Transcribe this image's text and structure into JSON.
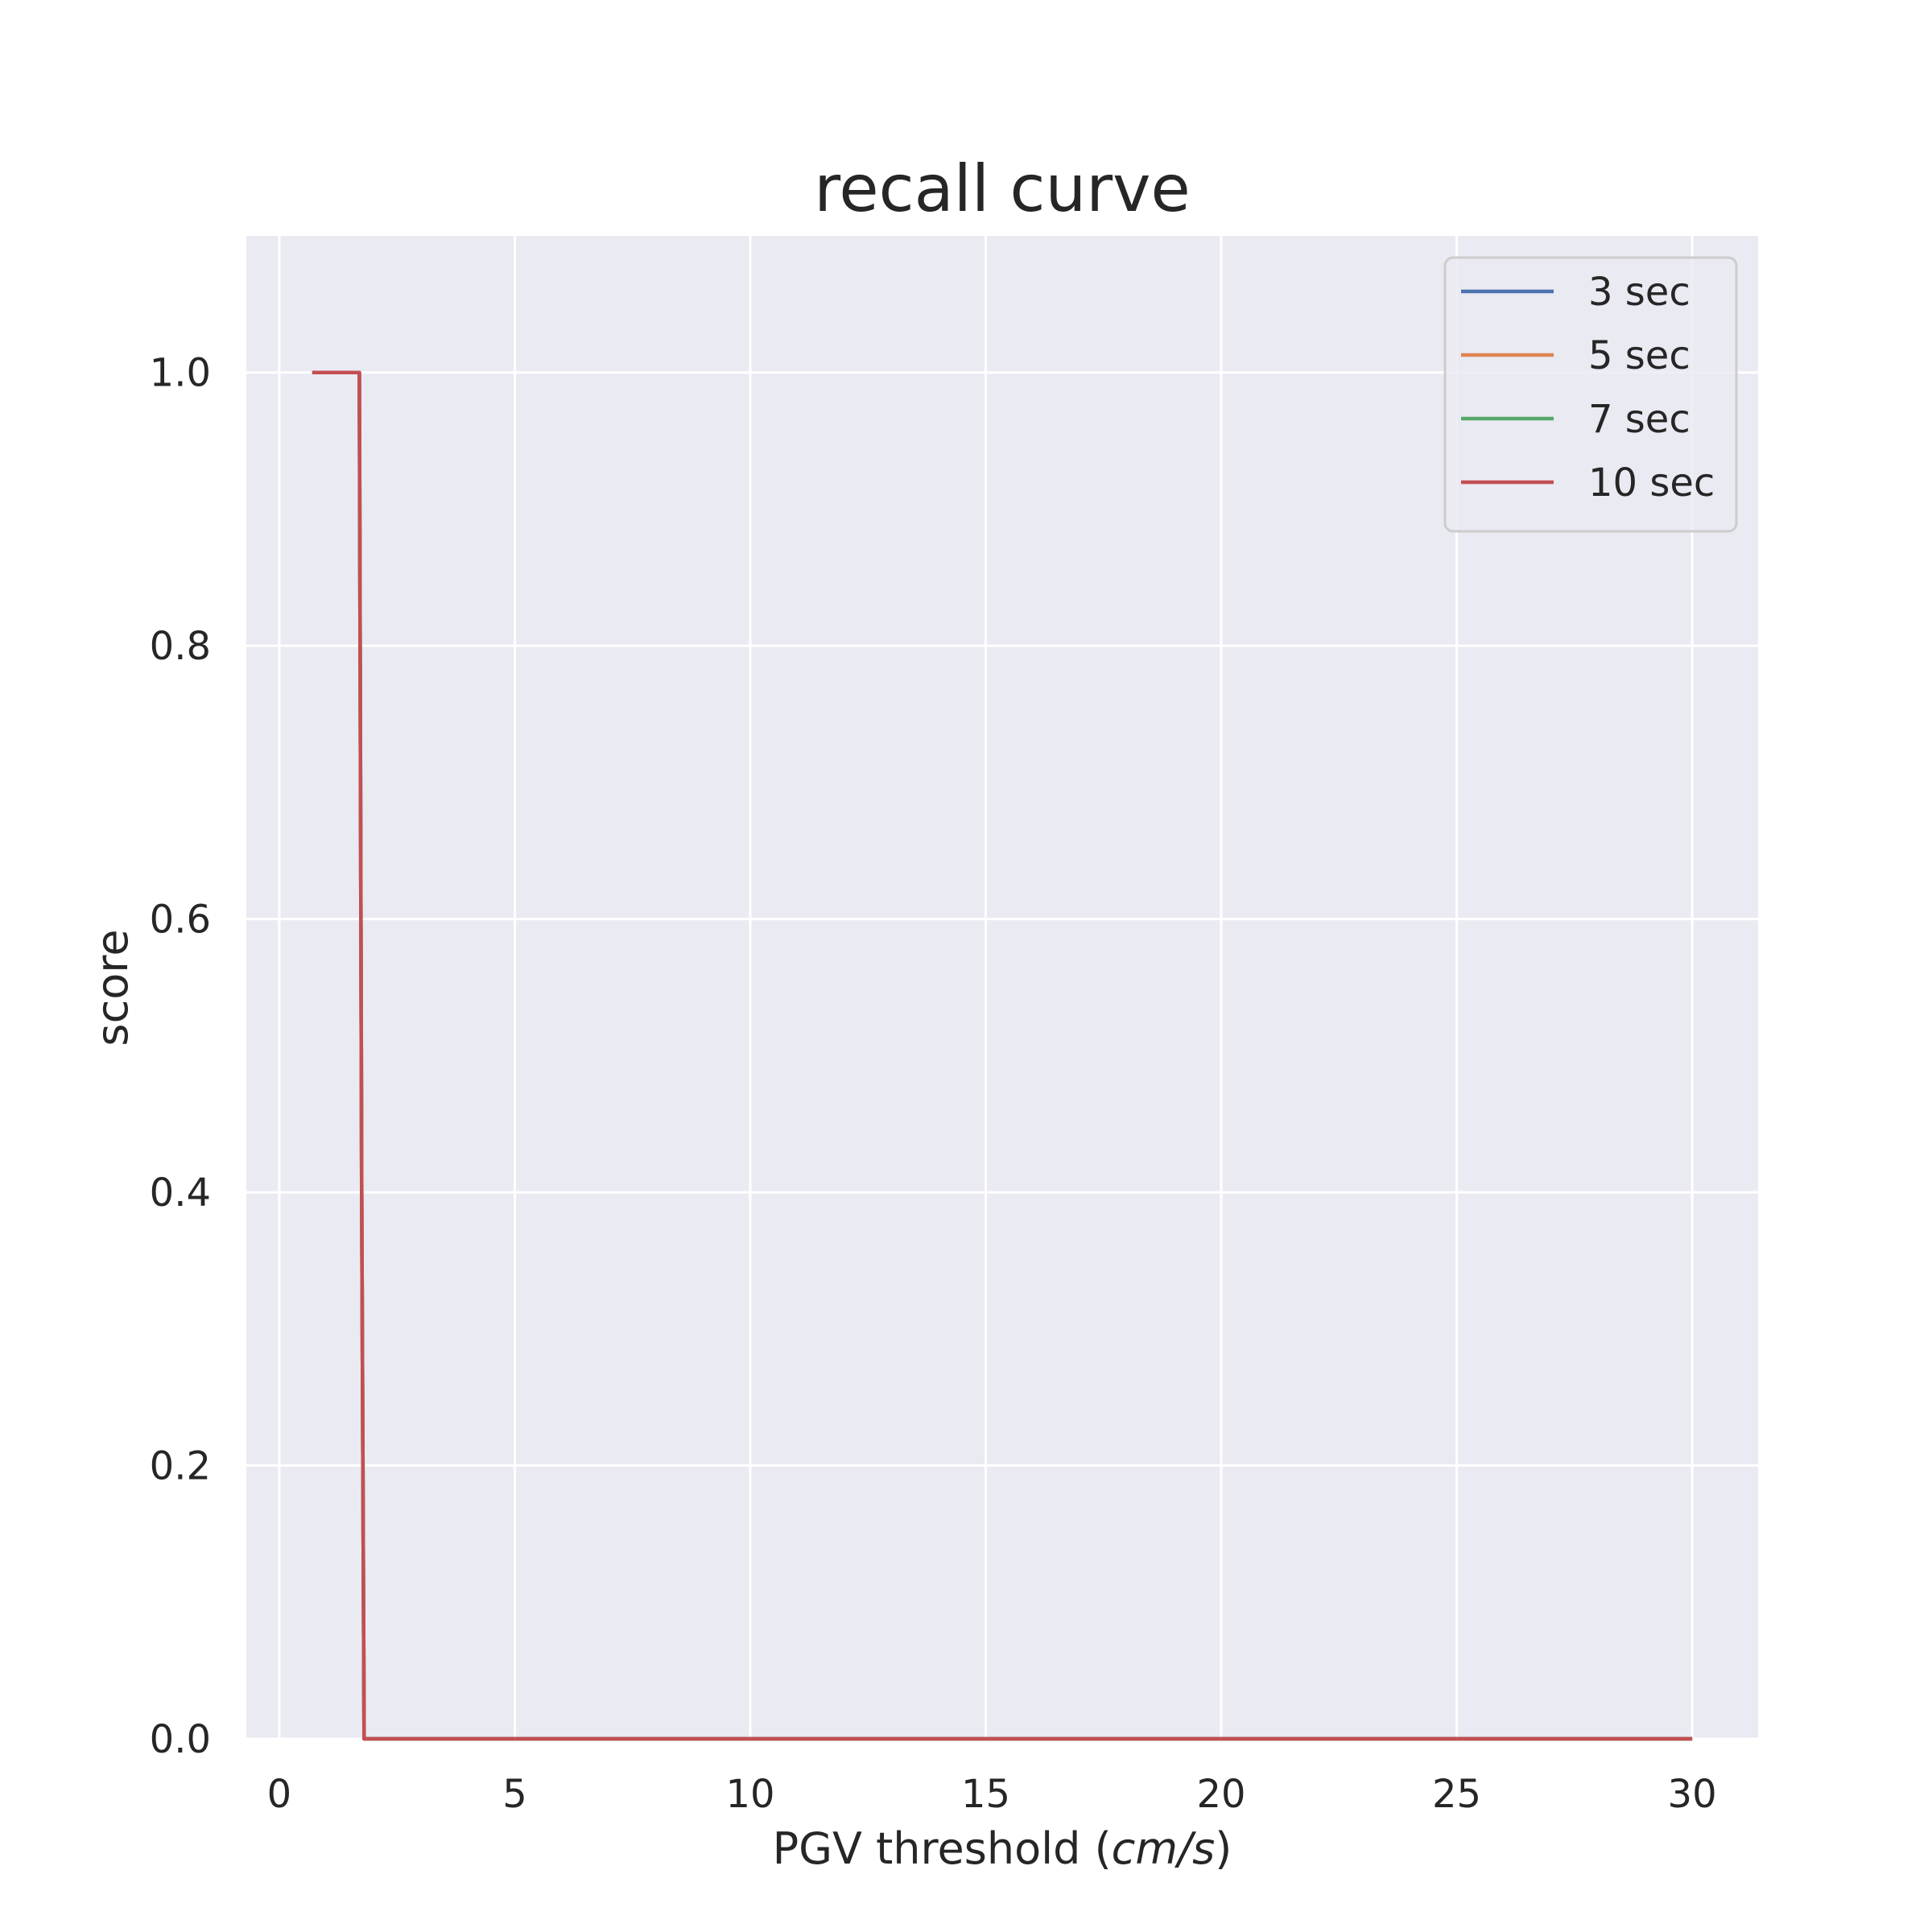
{
  "chart_data": {
    "type": "line",
    "title": "recall curve",
    "xlabel": "PGV threshold (cm/s)",
    "xlabel_plain": "PGV threshold (",
    "xlabel_math": "cm/s",
    "xlabel_close": ")",
    "ylabel": "score",
    "xlim": [
      -0.7,
      31.4
    ],
    "ylim": [
      0,
      1.1
    ],
    "xticks": [
      0,
      5,
      10,
      15,
      20,
      25,
      30
    ],
    "xtick_labels": [
      "0",
      "5",
      "10",
      "15",
      "20",
      "25",
      "30"
    ],
    "yticks": [
      0.0,
      0.2,
      0.4,
      0.6,
      0.8,
      1.0
    ],
    "ytick_labels": [
      "0.0",
      "0.2",
      "0.4",
      "0.6",
      "0.8",
      "1.0"
    ],
    "grid": true,
    "legend_position": "top-right",
    "background_color": "#eaeaf2",
    "grid_color": "#ffffff",
    "series": [
      {
        "name": "3 sec",
        "color": "#4c72b0",
        "x": [
          0.7,
          1.7,
          1.75,
          1.8,
          30
        ],
        "y": [
          1.0,
          1.0,
          0.4,
          0.0,
          0.0
        ]
      },
      {
        "name": "5 sec",
        "color": "#dd8452",
        "x": [
          0.7,
          1.7,
          1.75,
          1.8,
          30
        ],
        "y": [
          1.0,
          1.0,
          0.4,
          0.0,
          0.0
        ]
      },
      {
        "name": "7 sec",
        "color": "#55a868",
        "x": [
          0.7,
          1.7,
          1.75,
          1.8,
          30
        ],
        "y": [
          1.0,
          1.0,
          0.4,
          0.0,
          0.0
        ]
      },
      {
        "name": "10 sec",
        "color": "#c44e52",
        "x": [
          0.7,
          1.7,
          1.75,
          1.8,
          30
        ],
        "y": [
          1.0,
          1.0,
          0.4,
          0.0,
          0.0
        ]
      }
    ]
  }
}
